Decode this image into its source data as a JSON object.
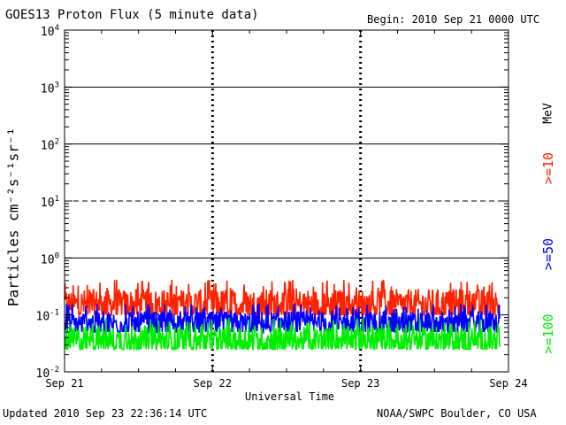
{
  "header": {
    "title": "GOES13 Proton Flux (5 minute data)",
    "begin": "Begin: 2010 Sep 21 0000 UTC"
  },
  "footer": {
    "updated": "Updated 2010 Sep 23 22:36:14 UTC",
    "source": "NOAA/SWPC Boulder, CO USA"
  },
  "colors": {
    "ge10": "#ff2200",
    "ge50": "#0000ff",
    "ge100": "#00ee00",
    "axis": "#000000"
  },
  "chart_data": {
    "type": "line",
    "title": "GOES13 Proton Flux (5 minute data)",
    "xlabel": "Universal Time",
    "ylabel": "Particles cm⁻²s⁻¹sr⁻¹",
    "unit_label": "MeV",
    "x_ticks": [
      "Sep 21",
      "Sep 22",
      "Sep 23",
      "Sep 24"
    ],
    "xlim_days": [
      0,
      3
    ],
    "y_scale": "log",
    "ylim": [
      0.01,
      10000
    ],
    "y_ticks": [
      {
        "base": "10",
        "exp": "-2",
        "value": 0.01
      },
      {
        "base": "10",
        "exp": "-1",
        "value": 0.1
      },
      {
        "base": "10",
        "exp": "0",
        "value": 1
      },
      {
        "base": "10",
        "exp": "1",
        "value": 10
      },
      {
        "base": "10",
        "exp": "2",
        "value": 100
      },
      {
        "base": "10",
        "exp": "3",
        "value": 1000
      },
      {
        "base": "10",
        "exp": "4",
        "value": 10000
      }
    ],
    "threshold_lines": [
      {
        "value": 1,
        "style": "solid"
      },
      {
        "value": 10,
        "style": "dashed"
      },
      {
        "value": 100,
        "style": "solid"
      },
      {
        "value": 1000,
        "style": "solid"
      }
    ],
    "series": [
      {
        "name": ">=10",
        "color": "#ff2200",
        "baseline": 0.14,
        "min": 0.1,
        "max": 0.42
      },
      {
        "name": ">=50",
        "color": "#0000ff",
        "baseline": 0.065,
        "min": 0.05,
        "max": 0.16
      },
      {
        "name": ">=100",
        "color": "#00ee00",
        "baseline": 0.033,
        "min": 0.025,
        "max": 0.09
      }
    ]
  }
}
